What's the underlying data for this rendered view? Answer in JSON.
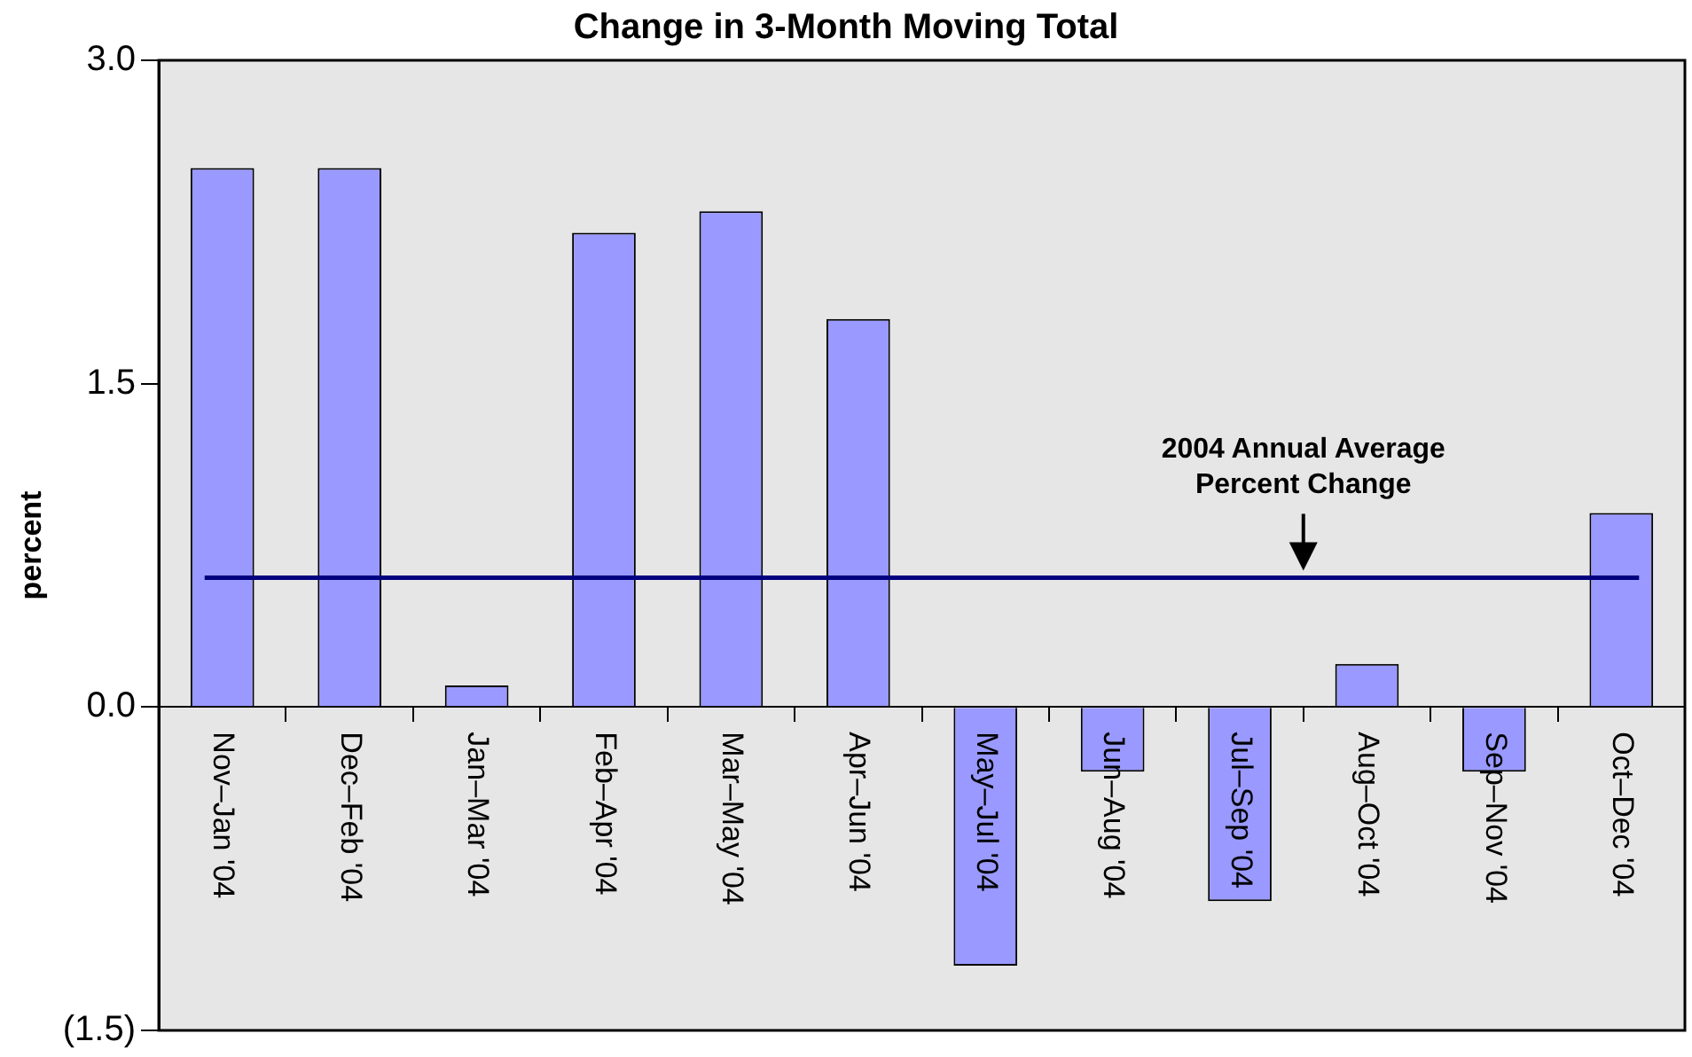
{
  "chart_data": {
    "type": "bar",
    "title": "Change in 3-Month Moving Total",
    "ylabel": "percent",
    "categories": [
      "Nov–Jan '04",
      "Dec–Feb '04",
      "Jan–Mar '04",
      "Feb–Apr '04",
      "Mar–May '04",
      "Apr–Jun '04",
      "May–Jul '04",
      "Jun–Aug '04",
      "Jul–Sep '04",
      "Aug–Oct '04",
      "Sep–Nov '04",
      "Oct–Dec '04"
    ],
    "values": [
      2.5,
      2.5,
      0.1,
      2.2,
      2.3,
      1.8,
      -1.2,
      -0.3,
      -0.9,
      0.2,
      -0.3,
      0.9
    ],
    "color": "#9999ff",
    "ylim": [
      -1.5,
      3.0
    ],
    "yticks": [
      {
        "value": -1.5,
        "label": "(1.5)"
      },
      {
        "value": 0,
        "label": "0.0"
      },
      {
        "value": 1.5,
        "label": "1.5"
      },
      {
        "value": 3,
        "label": "3.0"
      }
    ],
    "ref_lines": [
      {
        "axis": "y",
        "value": 0.6,
        "label": "2004 Annual Average Percent Change",
        "color": "#000080"
      }
    ],
    "grid": false,
    "legend": false
  }
}
